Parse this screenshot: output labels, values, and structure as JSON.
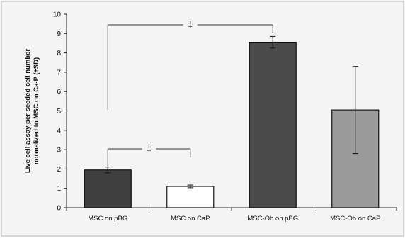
{
  "chart_data": {
    "type": "bar",
    "categories": [
      "MSC on pBG",
      "MSC on CaP",
      "MSC-Ob on pBG",
      "MSC-Ob on CaP"
    ],
    "values": [
      1.95,
      1.1,
      8.55,
      5.05
    ],
    "errors": [
      0.15,
      0.07,
      0.3,
      2.25
    ],
    "bar_fills": [
      "#3f3f3f",
      "#ffffff",
      "#4a4a4a",
      "#9b9b9b"
    ],
    "ylabel_lines": [
      "Live cell assay per seeded cell number",
      "normalized to MSC on Ca-P (±SD)"
    ],
    "ylim": [
      0,
      10
    ],
    "yticks": [
      0,
      1,
      2,
      3,
      4,
      5,
      6,
      7,
      8,
      9,
      10
    ],
    "significance": [
      {
        "from": 0,
        "to": 2,
        "label": "‡"
      },
      {
        "from": 0,
        "to": 1,
        "label": "‡"
      }
    ],
    "grid": false,
    "legend": "none"
  }
}
